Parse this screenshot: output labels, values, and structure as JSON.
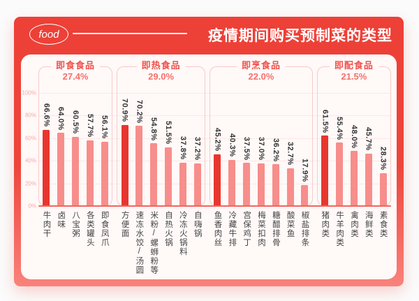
{
  "header": {
    "logo": "food",
    "title": "疫情期间购买预制菜的类型"
  },
  "colors": {
    "card_red_top": "#ed4037",
    "card_red_bottom": "#f9827b",
    "panel_bg": "#fff9f8",
    "bar_primary": "#e8362e",
    "bar_secondary": "#f78e8b",
    "group_border": "#f7cac8",
    "group_name_text": "#f0524c",
    "group_share_text": "#f3716c",
    "axis_tick_text": "#f6a9a5",
    "gridline": "#fce8e7",
    "baseline": "#f4645d",
    "value_label_text": "#333333"
  },
  "chart_data": {
    "type": "bar",
    "title": "疫情期间购买预制菜的类型",
    "xlabel": "",
    "ylabel": "",
    "ylim": [
      0,
      100
    ],
    "grid": true,
    "legend_position": "none",
    "y_ticks_top_to_bottom": [
      "100%",
      "80%",
      "60%",
      "40%",
      "20%",
      "0%"
    ],
    "groups": [
      {
        "name": "即食食品",
        "share": "27.4%",
        "items": [
          {
            "label": "牛肉干",
            "value": 66.6,
            "display": "66.6%"
          },
          {
            "label": "卤味",
            "value": 64.0,
            "display": "64.0%"
          },
          {
            "label": "八宝粥",
            "value": 60.5,
            "display": "60.5%"
          },
          {
            "label": "各类罐头",
            "value": 57.7,
            "display": "57.7%"
          },
          {
            "label": "即食凤爪",
            "value": 56.1,
            "display": "56.1%"
          }
        ]
      },
      {
        "name": "即热食品",
        "share": "29.0%",
        "items": [
          {
            "label": "方便面",
            "value": 70.9,
            "display": "70.9%"
          },
          {
            "label": "速冻水饺/汤圆",
            "value": 70.2,
            "display": "70.2%"
          },
          {
            "label": "米粉/螺蛳粉等",
            "value": 54.8,
            "display": "54.8%"
          },
          {
            "label": "自热火锅",
            "value": 51.5,
            "display": "51.5%"
          },
          {
            "label": "冷冻火锅料",
            "value": 37.8,
            "display": "37.8%"
          },
          {
            "label": "自嗨锅",
            "value": 37.2,
            "display": "37.2%"
          }
        ]
      },
      {
        "name": "即烹食品",
        "share": "22.0%",
        "items": [
          {
            "label": "鱼香肉丝",
            "value": 45.2,
            "display": "45.2%"
          },
          {
            "label": "冷藏牛排",
            "value": 40.3,
            "display": "40.3%"
          },
          {
            "label": "宫保鸡丁",
            "value": 37.5,
            "display": "37.5%"
          },
          {
            "label": "梅菜扣肉",
            "value": 37.0,
            "display": "37.0%"
          },
          {
            "label": "糖醋排骨",
            "value": 36.2,
            "display": "36.2%"
          },
          {
            "label": "酸菜鱼",
            "value": 32.7,
            "display": "32.7%"
          },
          {
            "label": "椒盐排条",
            "value": 17.9,
            "display": "17.9%"
          }
        ]
      },
      {
        "name": "即配食品",
        "share": "21.5%",
        "items": [
          {
            "label": "猪肉类",
            "value": 61.5,
            "display": "61.5%"
          },
          {
            "label": "牛羊肉类",
            "value": 55.4,
            "display": "55.4%"
          },
          {
            "label": "禽肉类",
            "value": 48.0,
            "display": "48.0%"
          },
          {
            "label": "海鲜类",
            "value": 45.7,
            "display": "45.7%"
          },
          {
            "label": "素食类",
            "value": 28.3,
            "display": "28.3%"
          }
        ]
      }
    ]
  }
}
